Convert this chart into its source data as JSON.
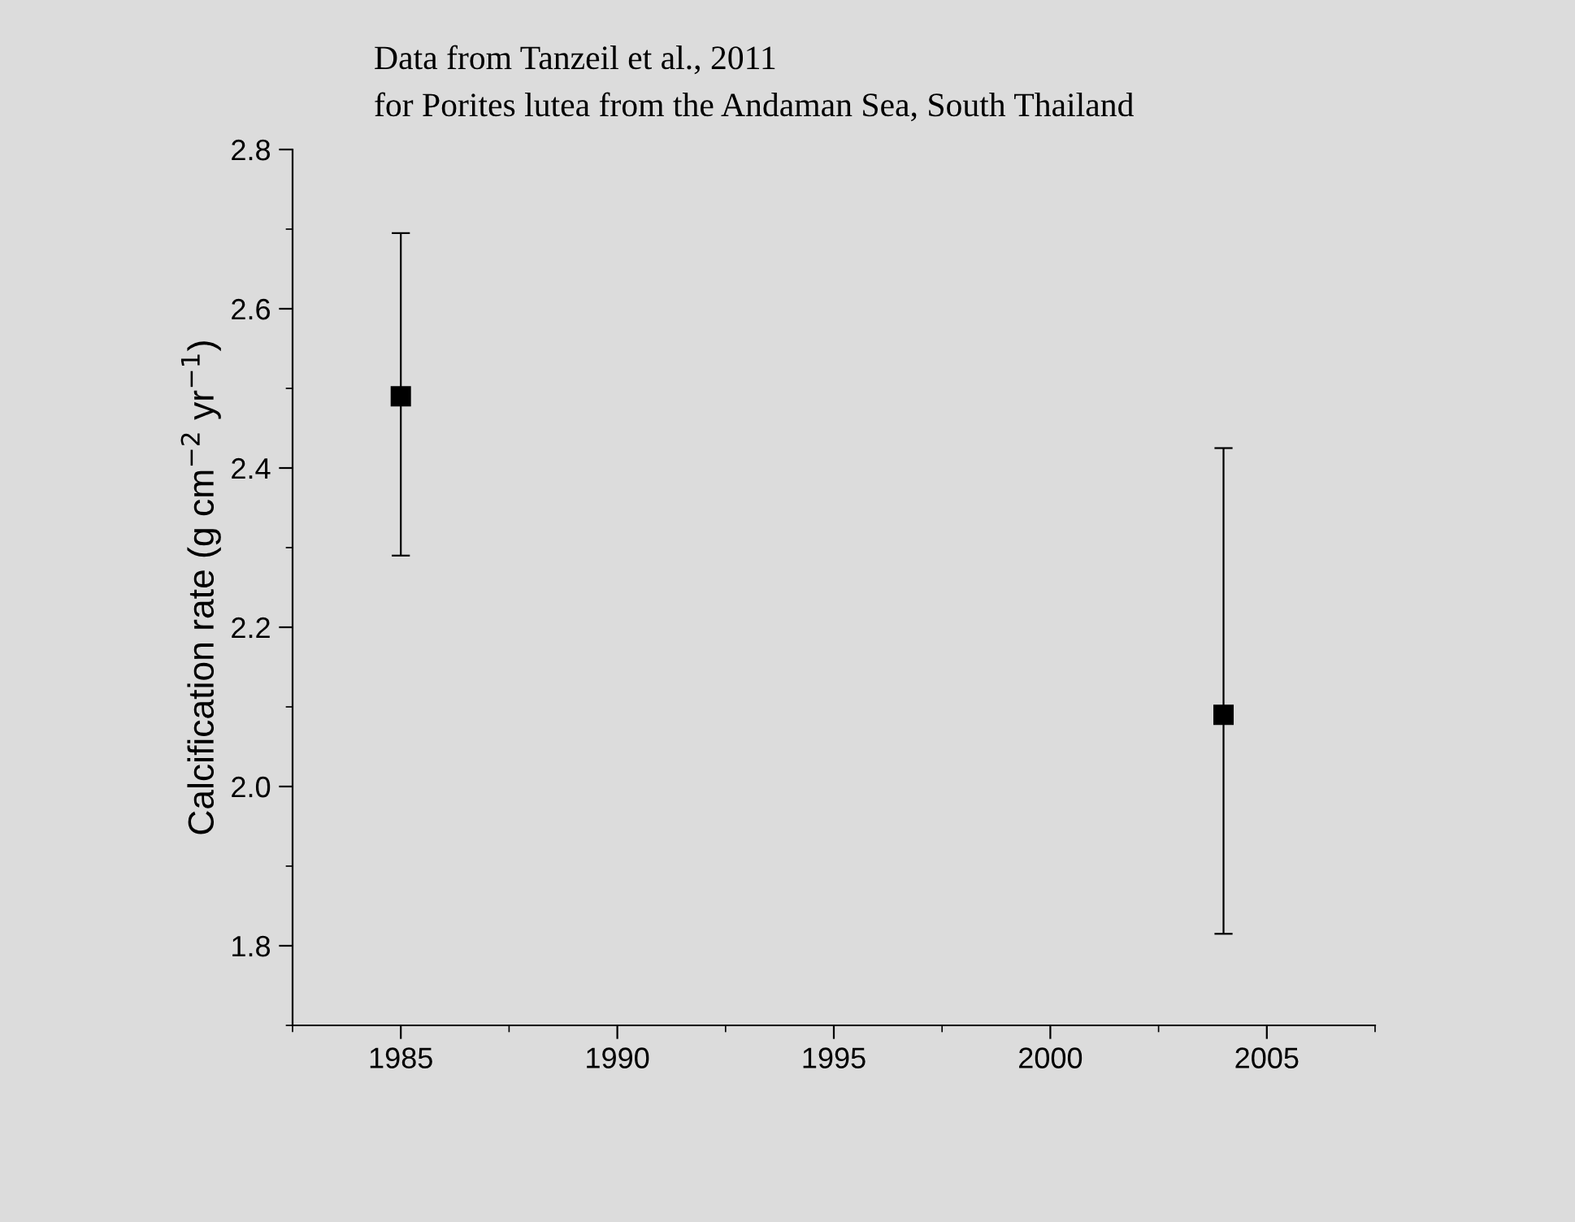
{
  "chart_data": {
    "type": "scatter",
    "title": "Data from Tanzeil et al., 2011",
    "subtitle": "for Porites lutea from the Andaman Sea, South Thailand",
    "ylabel": "Calcification rate (g cm$^{−2}$ yr$^{−1}$)",
    "x": [
      1985,
      2004
    ],
    "values": [
      2.49,
      2.09
    ],
    "errors": [
      [
        2.29,
        2.695
      ],
      [
        1.815,
        2.425
      ]
    ],
    "color": "#000000",
    "marker": "square",
    "xlim": [
      1982.5,
      2007.5
    ],
    "xticks": [
      1985,
      1990,
      1995,
      2000,
      2005
    ],
    "ylim": [
      1.7,
      2.8
    ],
    "yticks": [
      {
        "value": 1.8,
        "label": "1.8"
      },
      {
        "value": 2.0,
        "label": "2.0"
      },
      {
        "value": 2.2,
        "label": "2.2"
      },
      {
        "value": 2.4,
        "label": "2.4"
      },
      {
        "value": 2.6,
        "label": "2.6"
      },
      {
        "value": 2.8,
        "label": "2.8"
      }
    ],
    "grid": false,
    "legend": false
  }
}
